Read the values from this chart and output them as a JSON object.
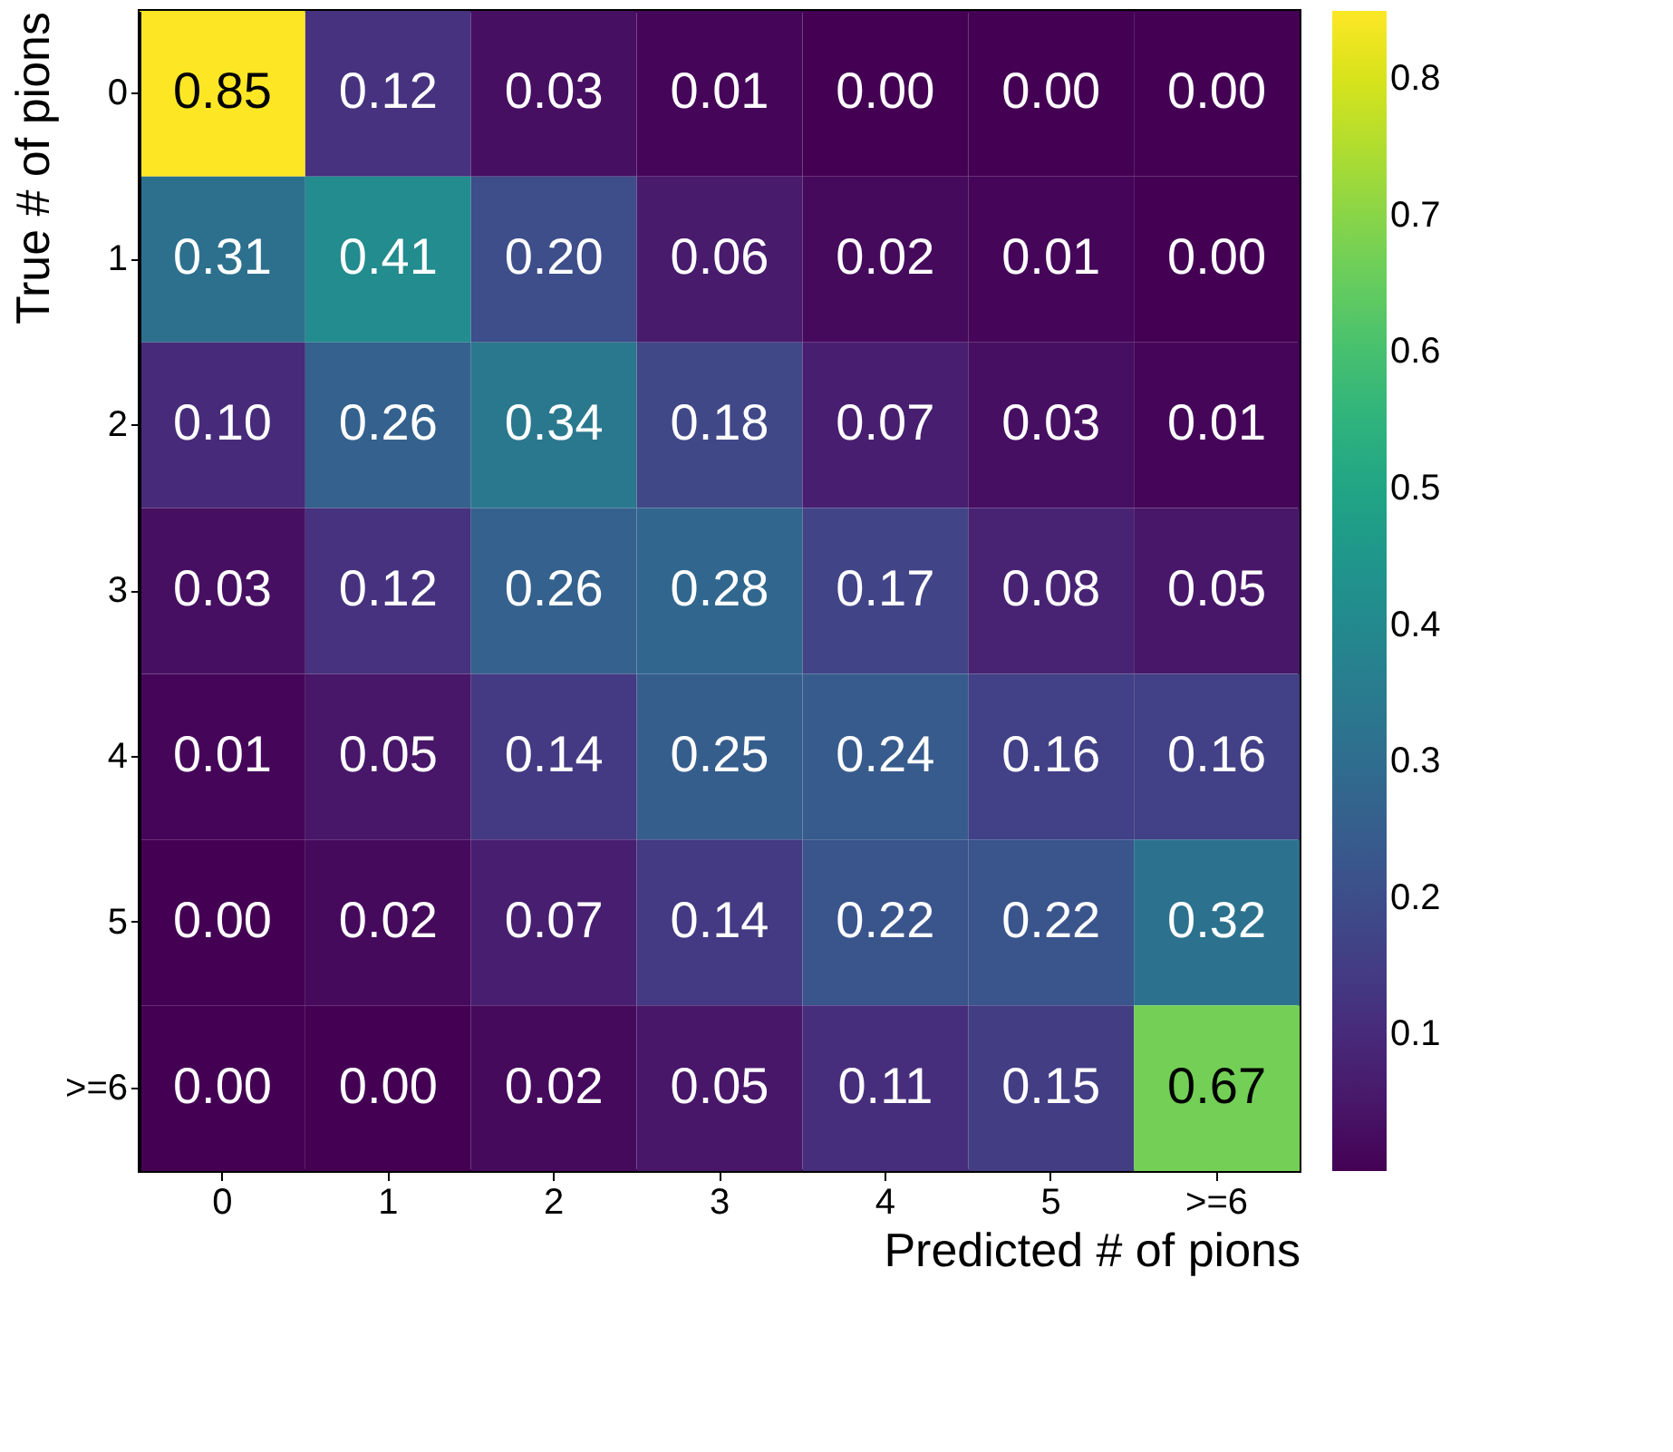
{
  "chart_data": {
    "type": "heatmap",
    "xlabel": "Predicted # of pions",
    "ylabel": "True # of pions",
    "categories": [
      "0",
      "1",
      "2",
      "3",
      "4",
      "5",
      ">=6"
    ],
    "y_categories": [
      "0",
      "1",
      "2",
      "3",
      "4",
      "5",
      ">=6"
    ],
    "cells": [
      [
        0.85,
        0.12,
        0.03,
        0.01,
        0.0,
        0.0,
        0.0
      ],
      [
        0.31,
        0.41,
        0.2,
        0.06,
        0.02,
        0.01,
        0.0
      ],
      [
        0.1,
        0.26,
        0.34,
        0.18,
        0.07,
        0.03,
        0.01
      ],
      [
        0.03,
        0.12,
        0.26,
        0.28,
        0.17,
        0.08,
        0.05
      ],
      [
        0.01,
        0.05,
        0.14,
        0.25,
        0.24,
        0.16,
        0.16
      ],
      [
        0.0,
        0.02,
        0.07,
        0.14,
        0.22,
        0.22,
        0.32
      ],
      [
        0.0,
        0.0,
        0.02,
        0.05,
        0.11,
        0.15,
        0.67
      ]
    ],
    "cell_labels": [
      [
        "0.85",
        "0.12",
        "0.03",
        "0.01",
        "0.00",
        "0.00",
        "0.00"
      ],
      [
        "0.31",
        "0.41",
        "0.20",
        "0.06",
        "0.02",
        "0.01",
        "0.00"
      ],
      [
        "0.10",
        "0.26",
        "0.34",
        "0.18",
        "0.07",
        "0.03",
        "0.01"
      ],
      [
        "0.03",
        "0.12",
        "0.26",
        "0.28",
        "0.17",
        "0.08",
        "0.05"
      ],
      [
        "0.01",
        "0.05",
        "0.14",
        "0.25",
        "0.24",
        "0.16",
        "0.16"
      ],
      [
        "0.00",
        "0.02",
        "0.07",
        "0.14",
        "0.22",
        "0.22",
        "0.32"
      ],
      [
        "0.00",
        "0.00",
        "0.02",
        "0.05",
        "0.11",
        "0.15",
        "0.67"
      ]
    ],
    "clim": [
      0.0,
      0.85
    ],
    "cticks": [
      0.1,
      0.2,
      0.3,
      0.4,
      0.5,
      0.6,
      0.7,
      0.8
    ],
    "data_labels": true
  }
}
